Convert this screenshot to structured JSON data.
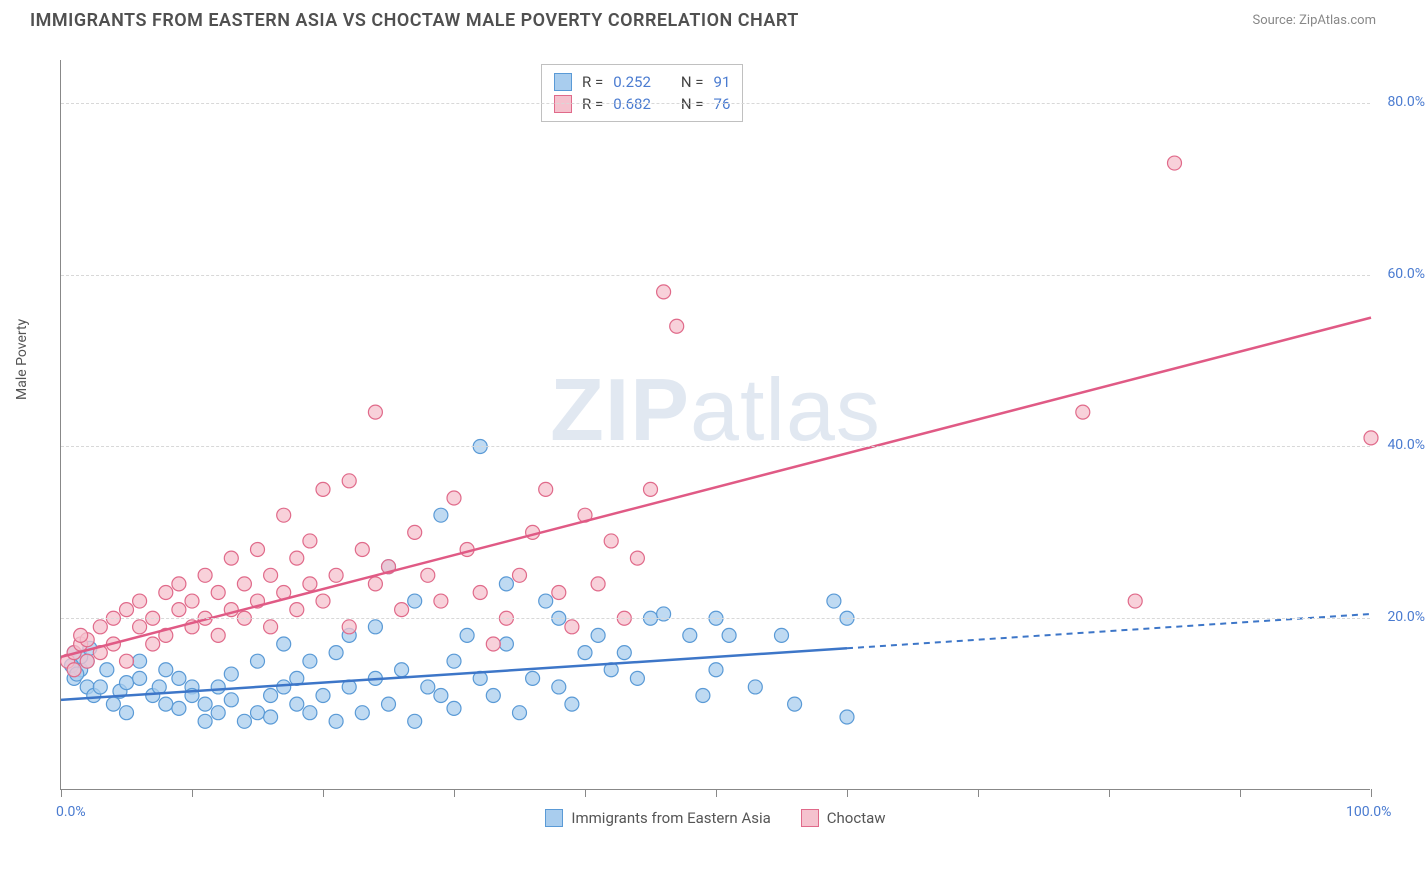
{
  "title": "IMMIGRANTS FROM EASTERN ASIA VS CHOCTAW MALE POVERTY CORRELATION CHART",
  "source": "Source: ZipAtlas.com",
  "watermark_bold": "ZIP",
  "watermark_rest": "atlas",
  "ylabel": "Male Poverty",
  "chart": {
    "type": "scatter",
    "background_color": "#ffffff",
    "grid_color": "#d8d8d8",
    "xlim": [
      0,
      100
    ],
    "ylim": [
      0,
      85
    ],
    "x_ticks_major": [
      0,
      10,
      20,
      30,
      40,
      50,
      60,
      70,
      80,
      90,
      100
    ],
    "x_tick_labels": {
      "0": "0.0%",
      "100": "100.0%"
    },
    "y_ticks": [
      20,
      40,
      60,
      80
    ],
    "y_tick_labels": {
      "20": "20.0%",
      "40": "40.0%",
      "60": "60.0%",
      "80": "80.0%"
    },
    "marker_radius": 7,
    "marker_stroke_width": 1.2,
    "line_width": 2.5,
    "series": [
      {
        "name": "Immigrants from Eastern Asia",
        "color_fill": "#a9cdee",
        "color_stroke": "#5a9ad6",
        "line_color": "#3d76c8",
        "r_value": "0.252",
        "n_value": "91",
        "trend": {
          "x1": 0,
          "y1": 10.5,
          "x2": 60,
          "y2": 16.5,
          "dash_x2": 100,
          "dash_y2": 20.5
        },
        "points": [
          [
            1,
            13
          ],
          [
            1.5,
            14
          ],
          [
            2,
            15
          ],
          [
            2,
            12
          ],
          [
            2.5,
            11
          ],
          [
            1.5,
            15.5
          ],
          [
            1,
            16
          ],
          [
            2.2,
            16.5
          ],
          [
            0.8,
            14.5
          ],
          [
            1.2,
            13.5
          ],
          [
            3,
            12
          ],
          [
            3.5,
            14
          ],
          [
            4,
            10
          ],
          [
            4.5,
            11.5
          ],
          [
            5,
            12.5
          ],
          [
            5,
            9
          ],
          [
            6,
            13
          ],
          [
            6,
            15
          ],
          [
            7,
            11
          ],
          [
            7.5,
            12
          ],
          [
            8,
            10
          ],
          [
            8,
            14
          ],
          [
            9,
            9.5
          ],
          [
            9,
            13
          ],
          [
            10,
            12
          ],
          [
            10,
            11
          ],
          [
            11,
            10
          ],
          [
            11,
            8
          ],
          [
            12,
            9
          ],
          [
            12,
            12
          ],
          [
            13,
            10.5
          ],
          [
            13,
            13.5
          ],
          [
            14,
            8
          ],
          [
            15,
            9
          ],
          [
            15,
            15
          ],
          [
            16,
            11
          ],
          [
            16,
            8.5
          ],
          [
            17,
            12
          ],
          [
            17,
            17
          ],
          [
            18,
            10
          ],
          [
            18,
            13
          ],
          [
            19,
            9
          ],
          [
            19,
            15
          ],
          [
            20,
            11
          ],
          [
            21,
            8
          ],
          [
            21,
            16
          ],
          [
            22,
            12
          ],
          [
            22,
            18
          ],
          [
            23,
            9
          ],
          [
            24,
            13
          ],
          [
            24,
            19
          ],
          [
            25,
            10
          ],
          [
            25,
            26
          ],
          [
            26,
            14
          ],
          [
            27,
            8
          ],
          [
            27,
            22
          ],
          [
            28,
            12
          ],
          [
            29,
            11
          ],
          [
            29,
            32
          ],
          [
            30,
            15
          ],
          [
            30,
            9.5
          ],
          [
            31,
            18
          ],
          [
            32,
            13
          ],
          [
            32,
            40
          ],
          [
            33,
            11
          ],
          [
            34,
            17
          ],
          [
            34,
            24
          ],
          [
            35,
            9
          ],
          [
            36,
            13
          ],
          [
            37,
            22
          ],
          [
            38,
            12
          ],
          [
            38,
            20
          ],
          [
            39,
            10
          ],
          [
            40,
            16
          ],
          [
            41,
            18
          ],
          [
            42,
            14
          ],
          [
            43,
            16
          ],
          [
            44,
            13
          ],
          [
            45,
            20
          ],
          [
            46,
            20.5
          ],
          [
            48,
            18
          ],
          [
            49,
            11
          ],
          [
            50,
            20
          ],
          [
            50,
            14
          ],
          [
            51,
            18
          ],
          [
            53,
            12
          ],
          [
            55,
            18
          ],
          [
            56,
            10
          ],
          [
            59,
            22
          ],
          [
            60,
            8.5
          ],
          [
            60,
            20
          ]
        ]
      },
      {
        "name": "Choctaw",
        "color_fill": "#f5c2ce",
        "color_stroke": "#e06a8a",
        "line_color": "#e05a85",
        "r_value": "0.682",
        "n_value": "76",
        "trend": {
          "x1": 0,
          "y1": 15.5,
          "x2": 100,
          "y2": 55,
          "dash_x2": null,
          "dash_y2": null
        },
        "points": [
          [
            0.5,
            15
          ],
          [
            1,
            16
          ],
          [
            1.5,
            17
          ],
          [
            2,
            15
          ],
          [
            2,
            17.5
          ],
          [
            1,
            14
          ],
          [
            1.5,
            18
          ],
          [
            3,
            19
          ],
          [
            3,
            16
          ],
          [
            4,
            17
          ],
          [
            4,
            20
          ],
          [
            5,
            15
          ],
          [
            5,
            21
          ],
          [
            6,
            19
          ],
          [
            6,
            22
          ],
          [
            7,
            17
          ],
          [
            7,
            20
          ],
          [
            8,
            23
          ],
          [
            8,
            18
          ],
          [
            9,
            21
          ],
          [
            9,
            24
          ],
          [
            10,
            19
          ],
          [
            10,
            22
          ],
          [
            11,
            20
          ],
          [
            11,
            25
          ],
          [
            12,
            18
          ],
          [
            12,
            23
          ],
          [
            13,
            21
          ],
          [
            13,
            27
          ],
          [
            14,
            20
          ],
          [
            14,
            24
          ],
          [
            15,
            22
          ],
          [
            15,
            28
          ],
          [
            16,
            19
          ],
          [
            16,
            25
          ],
          [
            17,
            23
          ],
          [
            17,
            32
          ],
          [
            18,
            21
          ],
          [
            18,
            27
          ],
          [
            19,
            24
          ],
          [
            19,
            29
          ],
          [
            20,
            22
          ],
          [
            20,
            35
          ],
          [
            21,
            25
          ],
          [
            22,
            19
          ],
          [
            22,
            36
          ],
          [
            23,
            28
          ],
          [
            24,
            24
          ],
          [
            24,
            44
          ],
          [
            25,
            26
          ],
          [
            26,
            21
          ],
          [
            27,
            30
          ],
          [
            28,
            25
          ],
          [
            29,
            22
          ],
          [
            30,
            34
          ],
          [
            31,
            28
          ],
          [
            32,
            23
          ],
          [
            33,
            17
          ],
          [
            34,
            20
          ],
          [
            35,
            25
          ],
          [
            36,
            30
          ],
          [
            37,
            35
          ],
          [
            38,
            23
          ],
          [
            39,
            19
          ],
          [
            40,
            32
          ],
          [
            41,
            24
          ],
          [
            42,
            29
          ],
          [
            43,
            20
          ],
          [
            44,
            27
          ],
          [
            45,
            35
          ],
          [
            46,
            58
          ],
          [
            47,
            54
          ],
          [
            78,
            44
          ],
          [
            82,
            22
          ],
          [
            85,
            73
          ],
          [
            100,
            41
          ]
        ]
      }
    ]
  },
  "legend_top": {
    "r_label": "R =",
    "n_label": "N ="
  },
  "legend_bottom": [
    {
      "swatch": "blue",
      "label": "Immigrants from Eastern Asia"
    },
    {
      "swatch": "pink",
      "label": "Choctaw"
    }
  ]
}
